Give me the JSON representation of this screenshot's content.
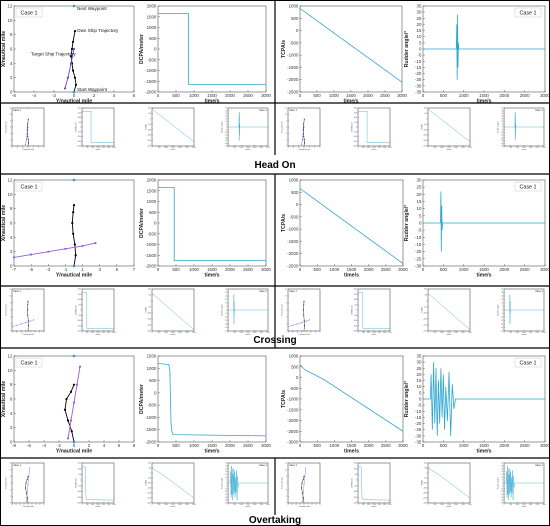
{
  "figure": {
    "sections": [
      "Head On",
      "Crossing",
      "Overtaking"
    ]
  },
  "chart_data": [
    {
      "id": "headon-trajectory",
      "type": "scatter",
      "xlabel": "Y/nautical mile",
      "ylabel": "X/nautical mile",
      "xlim": [
        -6,
        6
      ],
      "ylim": [
        0,
        12
      ],
      "xticks": [
        -6,
        -4,
        -2,
        0,
        2,
        4,
        6
      ],
      "yticks": [
        0,
        2,
        4,
        6,
        8,
        10,
        12
      ],
      "legend": "Case 1",
      "legend_position": "top-left",
      "annotations": [
        {
          "text": "Next Waypoint",
          "x": 0,
          "y": 12,
          "color": "#1f7fd0"
        },
        {
          "text": "Own Ship Trajectory",
          "x": 0,
          "y": 8.5,
          "color": "#000000"
        },
        {
          "text": "Target Ship Trajectory",
          "x": -0.5,
          "y": 5.2,
          "color": "#5b4bd1"
        },
        {
          "text": "Start Waypoint",
          "x": 0,
          "y": 0,
          "color": "#1f7fd0"
        }
      ],
      "series": [
        {
          "role": "own",
          "color": "#000000",
          "x": [
            0,
            0.2,
            0.1,
            -0.1,
            -0.2,
            -0.3,
            -0.2,
            -0.1,
            0.1
          ],
          "y": [
            0,
            1,
            2,
            3,
            4,
            5,
            6,
            7,
            8.5
          ]
        },
        {
          "role": "target",
          "color": "#5b4bd1",
          "x": [
            0,
            -0.3,
            -0.6,
            -0.9
          ],
          "y": [
            6,
            4,
            2,
            0.5
          ]
        }
      ],
      "waypoints": [
        {
          "x": 0,
          "y": 12
        },
        {
          "x": 0,
          "y": 0
        }
      ]
    },
    {
      "id": "headon-dcpa",
      "type": "line",
      "xlabel": "time/s",
      "ylabel": "DCPA/meter",
      "xlim": [
        0,
        3000
      ],
      "ylim": [
        -2000,
        2000
      ],
      "xticks": [
        0,
        500,
        1000,
        1500,
        2000,
        2500,
        3000
      ],
      "yticks": [
        -2000,
        -1500,
        -1000,
        -500,
        0,
        500,
        1000,
        1500,
        2000
      ],
      "series": [
        {
          "color": "#2fa8d0",
          "x": [
            0,
            850,
            850,
            3000
          ],
          "y": [
            1650,
            1650,
            -1650,
            -1650
          ]
        }
      ]
    },
    {
      "id": "headon-tcpa",
      "type": "line",
      "xlabel": "time/s",
      "ylabel": "TCPA/s",
      "xlim": [
        0,
        3000
      ],
      "ylim": [
        -2500,
        1000
      ],
      "xticks": [
        0,
        500,
        1000,
        1500,
        2000,
        2500,
        3000
      ],
      "yticks": [
        -2500,
        -2000,
        -1500,
        -1000,
        -500,
        0,
        500,
        1000
      ],
      "series": [
        {
          "color": "#2fa8d0",
          "x": [
            0,
            3000
          ],
          "y": [
            900,
            -2100
          ]
        }
      ]
    },
    {
      "id": "headon-rudder",
      "type": "line",
      "xlabel": "time/s",
      "ylabel": "Rudder angle/°",
      "xlim": [
        0,
        3000
      ],
      "ylim": [
        -35,
        35
      ],
      "xticks": [
        0,
        500,
        1000,
        1500,
        2000,
        2500,
        3000
      ],
      "yticks": [
        -35,
        -30,
        -25,
        -20,
        -15,
        -10,
        -5,
        0,
        5,
        10,
        15,
        20,
        25,
        30,
        35
      ],
      "legend": "Case 1",
      "legend_position": "top-right",
      "series": [
        {
          "color": "#2fa8d0",
          "x": [
            0,
            820,
            830,
            840,
            850,
            860,
            870,
            880,
            3000
          ],
          "y": [
            0,
            0,
            20,
            -25,
            28,
            -15,
            5,
            0,
            0
          ]
        }
      ]
    },
    {
      "id": "crossing-trajectory",
      "type": "scatter",
      "xlabel": "Y/nautical mile",
      "ylabel": "X/nautical mile",
      "xlim": [
        -7,
        7
      ],
      "ylim": [
        0,
        12
      ],
      "xticks": [
        -7,
        -5,
        -3,
        -1,
        1,
        3,
        5,
        7
      ],
      "yticks": [
        0,
        2,
        4,
        6,
        8,
        10,
        12
      ],
      "legend": "Case 1",
      "legend_position": "top-left",
      "series": [
        {
          "role": "own",
          "color": "#000000",
          "x": [
            0,
            0.2,
            0.1,
            -0.1,
            -0.2,
            -0.1,
            0
          ],
          "y": [
            0,
            1.5,
            3,
            4.5,
            6,
            7.5,
            8.5
          ]
        },
        {
          "role": "target",
          "color": "#8f5fd8",
          "x": [
            -7,
            -5,
            -3,
            -1,
            1,
            2.5
          ],
          "y": [
            1.2,
            1.6,
            2.0,
            2.4,
            2.8,
            3.2
          ]
        }
      ],
      "waypoints": [
        {
          "x": 0,
          "y": 12
        },
        {
          "x": 0,
          "y": 0
        }
      ]
    },
    {
      "id": "crossing-dcpa",
      "type": "line",
      "xlabel": "time/s",
      "ylabel": "DCPA/meter",
      "xlim": [
        0,
        3000
      ],
      "ylim": [
        -2000,
        2000
      ],
      "xticks": [
        0,
        500,
        1000,
        1500,
        2000,
        2500,
        3000
      ],
      "yticks": [
        -2000,
        -1500,
        -1000,
        -500,
        0,
        500,
        1000,
        1500,
        2000
      ],
      "series": [
        {
          "color": "#2fa8d0",
          "x": [
            0,
            450,
            450,
            3000
          ],
          "y": [
            1650,
            1650,
            -1750,
            -1750
          ]
        }
      ]
    },
    {
      "id": "crossing-tcpa",
      "type": "line",
      "xlabel": "time/s",
      "ylabel": "TCPA/s",
      "xlim": [
        0,
        3000
      ],
      "ylim": [
        -2500,
        1000
      ],
      "xticks": [
        0,
        500,
        1000,
        1500,
        2000,
        2500,
        3000
      ],
      "yticks": [
        -2500,
        -2000,
        -1500,
        -1000,
        -500,
        0,
        500,
        1000
      ],
      "series": [
        {
          "color": "#2fa8d0",
          "x": [
            0,
            3000
          ],
          "y": [
            650,
            -2400
          ]
        }
      ]
    },
    {
      "id": "crossing-rudder",
      "type": "line",
      "xlabel": "time/s",
      "ylabel": "Rudder angle/°",
      "xlim": [
        0,
        3000
      ],
      "ylim": [
        -30,
        30
      ],
      "xticks": [
        0,
        500,
        1000,
        1500,
        2000,
        2500,
        3000
      ],
      "yticks": [
        -30,
        -25,
        -20,
        -15,
        -10,
        -5,
        0,
        5,
        10,
        15,
        20,
        25,
        30
      ],
      "legend": "Case 1",
      "legend_position": "top-right",
      "series": [
        {
          "color": "#2fa8d0",
          "x": [
            0,
            430,
            440,
            450,
            460,
            470,
            480,
            3000
          ],
          "y": [
            0,
            0,
            22,
            -20,
            12,
            -5,
            0,
            0
          ]
        }
      ]
    },
    {
      "id": "overtaking-trajectory",
      "type": "scatter",
      "xlabel": "Y/nautical mile",
      "ylabel": "X/nautical mile",
      "xlim": [
        -8,
        8
      ],
      "ylim": [
        0,
        12
      ],
      "xticks": [
        -8,
        -6,
        -4,
        -2,
        0,
        2,
        4,
        6,
        8
      ],
      "yticks": [
        0,
        2,
        4,
        6,
        8,
        10,
        12
      ],
      "legend": "Case 1",
      "legend_position": "top-left",
      "series": [
        {
          "role": "own",
          "color": "#000000",
          "x": [
            0,
            -0.3,
            -0.8,
            -1.2,
            -1.0,
            -0.4,
            0
          ],
          "y": [
            0,
            1.5,
            3,
            4.5,
            6,
            7,
            8
          ]
        },
        {
          "role": "target",
          "color": "#8f5fd8",
          "x": [
            -0.8,
            -0.4,
            0,
            0.4,
            0.8
          ],
          "y": [
            0.5,
            3,
            5.5,
            8,
            10.5
          ]
        }
      ],
      "waypoints": [
        {
          "x": 0,
          "y": 12
        },
        {
          "x": 0,
          "y": 0
        }
      ]
    },
    {
      "id": "overtaking-dcpa",
      "type": "line",
      "xlabel": "time/s",
      "ylabel": "DCPA/meter",
      "xlim": [
        0,
        3000
      ],
      "ylim": [
        -2000,
        1500
      ],
      "xticks": [
        0,
        500,
        1000,
        1500,
        2000,
        2500,
        3000
      ],
      "yticks": [
        -2000,
        -1500,
        -1000,
        -500,
        0,
        500,
        1000,
        1500
      ],
      "series": [
        {
          "color": "#2fa8d0",
          "x": [
            0,
            300,
            330,
            360,
            390,
            420,
            3000
          ],
          "y": [
            1200,
            1150,
            900,
            -1200,
            -1600,
            -1700,
            -1750
          ]
        }
      ]
    },
    {
      "id": "overtaking-tcpa",
      "type": "line",
      "xlabel": "time/s",
      "ylabel": "TCPA/s",
      "xlim": [
        0,
        3000
      ],
      "ylim": [
        -3000,
        1000
      ],
      "xticks": [
        0,
        500,
        1000,
        1500,
        2000,
        2500,
        3000
      ],
      "yticks": [
        -3000,
        -2500,
        -2000,
        -1500,
        -1000,
        -500,
        0,
        500,
        1000
      ],
      "series": [
        {
          "color": "#2fa8d0",
          "x": [
            0,
            150,
            400,
            700,
            3000
          ],
          "y": [
            600,
            350,
            150,
            -100,
            -2500
          ]
        }
      ]
    },
    {
      "id": "overtaking-rudder",
      "type": "line",
      "xlabel": "time/s",
      "ylabel": "Rudder angle/°",
      "xlim": [
        0,
        3000
      ],
      "ylim": [
        -35,
        35
      ],
      "xticks": [
        0,
        500,
        1000,
        1500,
        2000,
        2500,
        3000
      ],
      "yticks": [
        -35,
        -30,
        -25,
        -20,
        -15,
        -10,
        -5,
        0,
        5,
        10,
        15,
        20,
        25,
        30,
        35
      ],
      "legend": "Case 1",
      "legend_position": "top-right",
      "series": [
        {
          "color": "#2fa8d0",
          "x": [
            0,
            180,
            200,
            230,
            260,
            290,
            320,
            350,
            380,
            410,
            440,
            470,
            500,
            530,
            560,
            600,
            640,
            680,
            720,
            760,
            800,
            3000
          ],
          "y": [
            0,
            0,
            20,
            -25,
            30,
            -20,
            25,
            -30,
            15,
            -20,
            25,
            -15,
            20,
            -25,
            10,
            -18,
            22,
            -30,
            12,
            -8,
            0,
            0
          ]
        }
      ]
    }
  ]
}
